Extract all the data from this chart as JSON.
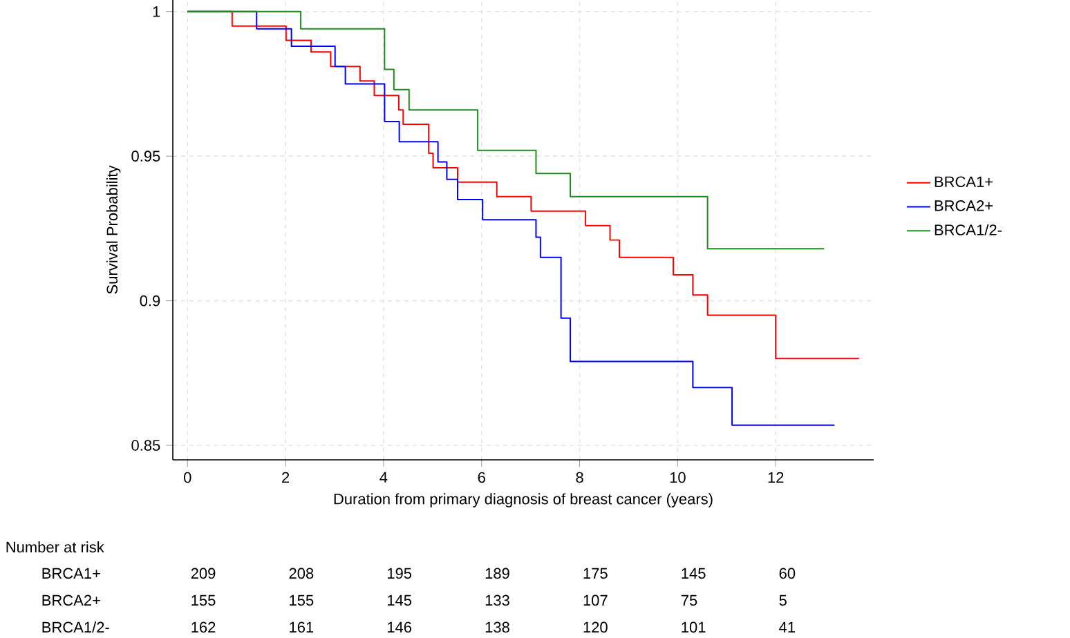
{
  "chart_data": {
    "type": "step",
    "xlabel": "Duration from primary diagnosis of breast cancer (years)",
    "ylabel": "Survival Probability",
    "xlim": [
      -0.3,
      14
    ],
    "ylim": [
      0.845,
      1.004
    ],
    "xticks": [
      0,
      2,
      4,
      6,
      8,
      10,
      12
    ],
    "yticks": [
      0.85,
      0.9,
      0.95,
      1
    ],
    "grid": true,
    "legend": "right",
    "line_style": "solid",
    "marker": "none",
    "series": [
      {
        "name": "BRCA1+",
        "color": "#ff0000",
        "x": [
          0,
          0.91,
          2.01,
          2.52,
          2.92,
          3.52,
          3.81,
          4.31,
          4.4,
          4.92,
          5.01,
          5.51,
          6.31,
          7.01,
          8.12,
          8.62,
          8.81,
          9.91,
          10.31,
          10.61,
          12.0,
          13.7
        ],
        "values": [
          1,
          0.995,
          0.99,
          0.986,
          0.981,
          0.976,
          0.971,
          0.966,
          0.961,
          0.951,
          0.946,
          0.941,
          0.936,
          0.931,
          0.926,
          0.921,
          0.915,
          0.909,
          0.902,
          0.895,
          0.88,
          0.88
        ]
      },
      {
        "name": "BRCA2+",
        "color": "#0000ff",
        "x": [
          0,
          1.41,
          2.12,
          3.01,
          3.22,
          4.02,
          4.32,
          5.11,
          5.29,
          5.51,
          6.02,
          7.11,
          7.2,
          7.62,
          7.81,
          10.31,
          11.11,
          13.2
        ],
        "values": [
          1,
          0.994,
          0.988,
          0.981,
          0.975,
          0.962,
          0.955,
          0.948,
          0.942,
          0.935,
          0.928,
          0.922,
          0.915,
          0.894,
          0.879,
          0.87,
          0.857,
          0.857
        ]
      },
      {
        "name": "BRCA1/2-",
        "color": "#1e8c1e",
        "x": [
          0,
          2.31,
          4.02,
          4.21,
          4.52,
          5.92,
          7.11,
          7.81,
          10.61,
          12.99
        ],
        "values": [
          1,
          0.994,
          0.98,
          0.973,
          0.966,
          0.952,
          0.944,
          0.936,
          0.918,
          0.918
        ]
      }
    ],
    "annotations": [
      "Number at risk",
      "BRCA1+",
      "209",
      "208",
      "195",
      "189",
      "175",
      "145",
      "60",
      "BRCA2+",
      "155",
      "155",
      "145",
      "133",
      "107",
      "75",
      "5",
      "BRCA1/2-",
      "162",
      "161",
      "146",
      "138",
      "120",
      "101",
      "41"
    ]
  }
}
